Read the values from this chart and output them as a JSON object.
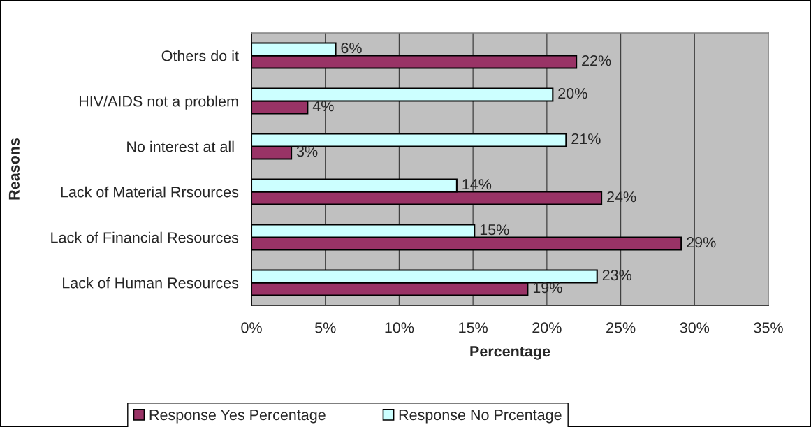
{
  "chart_data": {
    "type": "bar",
    "orientation": "horizontal",
    "xlabel": "Percentage",
    "ylabel": "Reasons",
    "categories": [
      "Others do it",
      "HIV/AIDS not a problem",
      "No interest at all ",
      "Lack of Material Rrsources",
      "Lack of Financial Resources",
      "Lack of Human Resources"
    ],
    "series": [
      {
        "name": "Response Yes Percentage",
        "color": "#993366",
        "values": [
          22.0,
          3.8,
          2.7,
          23.7,
          29.1,
          18.7
        ],
        "value_labels": [
          "22%",
          "4%",
          "3%",
          "24%",
          "29%",
          "19%"
        ]
      },
      {
        "name": "Response No Prcentage",
        "color": "#ccffff",
        "values": [
          5.7,
          20.4,
          21.3,
          13.9,
          15.1,
          23.4
        ],
        "value_labels": [
          "6%",
          "20%",
          "21%",
          "14%",
          "15%",
          "23%"
        ]
      }
    ],
    "xlim": [
      0,
      35
    ],
    "xticks": [
      {
        "value": 0,
        "label": "0%"
      },
      {
        "value": 5,
        "label": "5%"
      },
      {
        "value": 10,
        "label": "10%"
      },
      {
        "value": 15,
        "label": "15%"
      },
      {
        "value": 20,
        "label": "20%"
      },
      {
        "value": 25,
        "label": "25%"
      },
      {
        "value": 30,
        "label": "30%"
      },
      {
        "value": 35,
        "label": "35%"
      }
    ],
    "grid": "x",
    "legend": "bottom"
  }
}
